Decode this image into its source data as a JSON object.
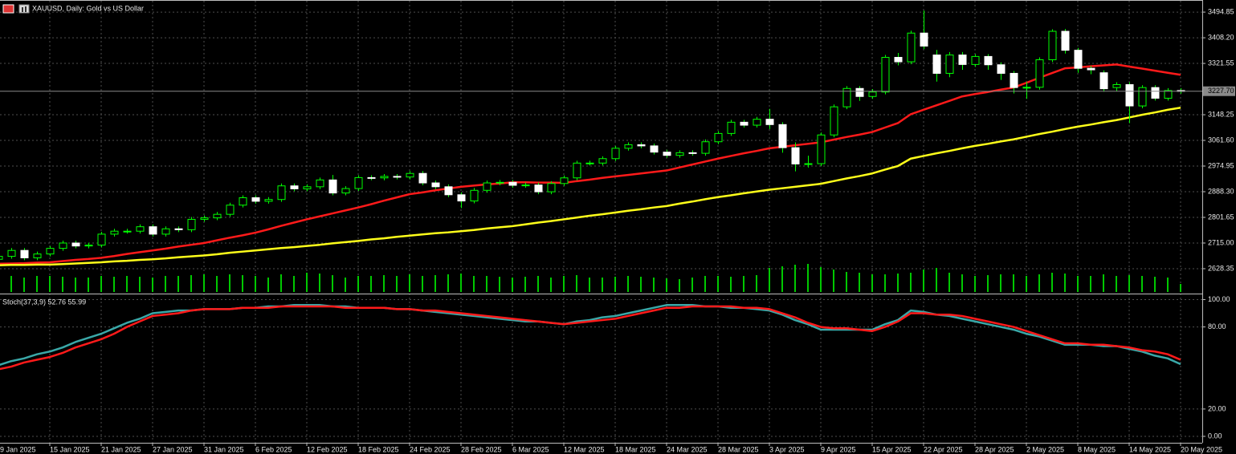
{
  "chart_data": [
    {
      "type": "candlestick",
      "title": "XAUUSD, Daily:  Gold vs US Dollar",
      "categories": [
        "9 Jan 2025",
        null,
        null,
        null,
        "15 Jan 2025",
        null,
        null,
        null,
        "21 Jan 2025",
        null,
        null,
        null,
        "27 Jan 2025",
        null,
        null,
        null,
        "31 Jan 2025",
        null,
        null,
        null,
        "6 Feb 2025",
        null,
        null,
        null,
        "12 Feb 2025",
        null,
        null,
        null,
        "18 Feb 2025",
        null,
        null,
        null,
        "24 Feb 2025",
        null,
        null,
        null,
        "28 Feb 2025",
        null,
        null,
        null,
        "6 Mar 2025",
        null,
        null,
        null,
        "12 Mar 2025",
        null,
        null,
        null,
        "18 Mar 2025",
        null,
        null,
        null,
        "24 Mar 2025",
        null,
        null,
        null,
        "28 Mar 2025",
        null,
        null,
        null,
        "3 Apr 2025",
        null,
        null,
        null,
        "9 Apr 2025",
        null,
        null,
        null,
        "15 Apr 2025",
        null,
        null,
        null,
        "22 Apr 2025",
        null,
        null,
        null,
        "28 Apr 2025",
        null,
        null,
        null,
        "2 May 2025",
        null,
        null,
        null,
        "8 May 2025",
        null,
        null,
        null,
        "14 May 2025",
        null,
        null,
        null,
        "20 May 2025"
      ],
      "open": [
        2660,
        2670,
        2690,
        2665,
        2678,
        2697,
        2715,
        2705,
        2708,
        2745,
        2755,
        2755,
        2770,
        2745,
        2763,
        2760,
        2795,
        2800,
        2812,
        2843,
        2868,
        2856,
        2862,
        2908,
        2898,
        2905,
        2928,
        2884,
        2899,
        2936,
        2935,
        2940,
        2938,
        2950,
        2918,
        2905,
        2878,
        2857,
        2893,
        2918,
        2920,
        2910,
        2911,
        2888,
        2916,
        2935,
        2985,
        2985,
        3000,
        3035,
        3047,
        3043,
        3022,
        3011,
        3020,
        3018,
        3057,
        3085,
        3123,
        3113,
        3133,
        3115,
        3037,
        2982,
        2983,
        3080,
        3175,
        3237,
        3210,
        3225,
        3342,
        3327,
        3424,
        3350,
        3288,
        3350,
        3318,
        3345,
        3317,
        3288,
        3240,
        3241,
        3334,
        3430,
        3366,
        3305,
        3290,
        3240,
        3250,
        3178,
        3240,
        3204,
        3230
      ],
      "high": [
        2678,
        2698,
        2698,
        2686,
        2705,
        2723,
        2723,
        2716,
        2753,
        2763,
        2763,
        2778,
        2778,
        2771,
        2771,
        2803,
        2808,
        2820,
        2851,
        2876,
        2876,
        2870,
        2916,
        2916,
        2913,
        2936,
        2945,
        2907,
        2944,
        2944,
        2948,
        2948,
        2958,
        2958,
        2926,
        2913,
        2886,
        2901,
        2926,
        2928,
        2928,
        2919,
        2919,
        2924,
        2943,
        2993,
        2993,
        3008,
        3043,
        3055,
        3055,
        3051,
        3030,
        3028,
        3028,
        3065,
        3093,
        3131,
        3131,
        3141,
        3168,
        3123,
        3055,
        3010,
        3088,
        3183,
        3245,
        3245,
        3235,
        3350,
        3357,
        3432,
        3500,
        3367,
        3360,
        3360,
        3353,
        3353,
        3325,
        3296,
        3259,
        3342,
        3437,
        3438,
        3374,
        3313,
        3298,
        3258,
        3258,
        3248,
        3248,
        3238,
        3238
      ],
      "low": [
        2652,
        2662,
        2657,
        2657,
        2670,
        2689,
        2697,
        2697,
        2700,
        2737,
        2747,
        2747,
        2737,
        2737,
        2752,
        2752,
        2787,
        2792,
        2804,
        2835,
        2848,
        2848,
        2854,
        2890,
        2890,
        2897,
        2876,
        2876,
        2891,
        2927,
        2927,
        2930,
        2930,
        2910,
        2897,
        2870,
        2833,
        2849,
        2885,
        2910,
        2902,
        2902,
        2880,
        2880,
        2908,
        2927,
        2977,
        2977,
        2992,
        3027,
        3035,
        3014,
        3003,
        3003,
        3010,
        3010,
        3049,
        3077,
        3105,
        3105,
        3100,
        3020,
        2957,
        2970,
        2975,
        3072,
        3167,
        3195,
        3202,
        3217,
        3315,
        3319,
        3370,
        3260,
        3275,
        3300,
        3310,
        3300,
        3266,
        3220,
        3202,
        3233,
        3326,
        3355,
        3290,
        3285,
        3226,
        3228,
        3120,
        3170,
        3196,
        3196,
        3219
      ],
      "close": [
        2670,
        2690,
        2665,
        2678,
        2697,
        2715,
        2705,
        2708,
        2745,
        2755,
        2755,
        2770,
        2745,
        2763,
        2760,
        2795,
        2800,
        2812,
        2843,
        2868,
        2856,
        2862,
        2908,
        2898,
        2905,
        2928,
        2884,
        2899,
        2936,
        2935,
        2940,
        2938,
        2950,
        2918,
        2905,
        2878,
        2857,
        2893,
        2918,
        2920,
        2910,
        2911,
        2888,
        2916,
        2935,
        2985,
        2985,
        3000,
        3035,
        3047,
        3043,
        3022,
        3011,
        3020,
        3018,
        3057,
        3085,
        3123,
        3113,
        3133,
        3115,
        3037,
        2982,
        2983,
        3080,
        3175,
        3237,
        3210,
        3225,
        3342,
        3327,
        3424,
        3380,
        3288,
        3350,
        3318,
        3345,
        3317,
        3288,
        3240,
        3241,
        3334,
        3430,
        3366,
        3305,
        3300,
        3236,
        3250,
        3178,
        3240,
        3204,
        3230,
        3227.7
      ],
      "bull_color": "#00ff00",
      "bear_color": "#ffffff",
      "volume": [
        22,
        20,
        18,
        20,
        20,
        19,
        18,
        18,
        20,
        19,
        20,
        19,
        18,
        20,
        20,
        21,
        22,
        20,
        22,
        21,
        20,
        18,
        22,
        20,
        24,
        23,
        21,
        18,
        20,
        20,
        21,
        20,
        22,
        20,
        21,
        22,
        23,
        20,
        20,
        19,
        18,
        19,
        20,
        18,
        20,
        21,
        18,
        18,
        19,
        20,
        19,
        18,
        17,
        16,
        18,
        20,
        20,
        19,
        20,
        21,
        30,
        32,
        34,
        35,
        31,
        28,
        25,
        24,
        22,
        22,
        23,
        24,
        28,
        30,
        24,
        22,
        20,
        21,
        22,
        22,
        20,
        22,
        24,
        23,
        20,
        20,
        22,
        20,
        21,
        20,
        19,
        18,
        10
      ],
      "volume_color": "#00c800",
      "series": [
        {
          "color": "#ff1a1a",
          "values": [
            2645,
            2646,
            2647,
            2649,
            2650,
            2654,
            2658,
            2661,
            2665,
            2671,
            2678,
            2684,
            2690,
            2696,
            2703,
            2709,
            2715,
            2724,
            2733,
            2741,
            2750,
            2761,
            2773,
            2784,
            2795,
            2805,
            2815,
            2825,
            2835,
            2846,
            2858,
            2869,
            2880,
            2886,
            2893,
            2899,
            2905,
            2909,
            2913,
            2916,
            2920,
            2920,
            2919,
            2919,
            2918,
            2924,
            2929,
            2935,
            2940,
            2945,
            2950,
            2955,
            2960,
            2970,
            2980,
            2990,
            3000,
            3009,
            3018,
            3026,
            3035,
            3040,
            3045,
            3050,
            3055,
            3064,
            3073,
            3081,
            3090,
            3105,
            3120,
            3150,
            3165,
            3180,
            3195,
            3210,
            3218,
            3225,
            3233,
            3240,
            3256,
            3273,
            3289,
            3305,
            3308,
            3312,
            3315,
            3318,
            3311,
            3304,
            3297,
            3290,
            3283
          ]
        },
        {
          "color": "#ffff1a",
          "values": [
            2640,
            2641,
            2641,
            2642,
            2642,
            2644,
            2646,
            2648,
            2650,
            2653,
            2655,
            2658,
            2660,
            2663,
            2667,
            2670,
            2673,
            2677,
            2682,
            2686,
            2690,
            2694,
            2698,
            2701,
            2705,
            2709,
            2714,
            2718,
            2722,
            2727,
            2731,
            2736,
            2740,
            2744,
            2748,
            2751,
            2755,
            2759,
            2764,
            2768,
            2772,
            2778,
            2784,
            2789,
            2795,
            2801,
            2807,
            2812,
            2818,
            2824,
            2829,
            2835,
            2840,
            2848,
            2855,
            2863,
            2870,
            2876,
            2883,
            2889,
            2895,
            2900,
            2905,
            2910,
            2915,
            2924,
            2933,
            2941,
            2950,
            2963,
            2975,
            3000,
            3009,
            3018,
            3026,
            3035,
            3043,
            3050,
            3058,
            3065,
            3074,
            3083,
            3091,
            3100,
            3108,
            3115,
            3123,
            3130,
            3139,
            3148,
            3156,
            3165,
            3172
          ]
        }
      ],
      "current_price": {
        "value": 3227.7,
        "label": "3227.70"
      },
      "ylim": [
        2547,
        3533
      ],
      "yticks": [
        2628.35,
        {
          "value": 2715,
          "label": "2715.00"
        },
        2801.65,
        {
          "value": 2888.3,
          "label": "2888.30"
        },
        2974.95,
        {
          "value": 3061.6,
          "label": "3061.60"
        },
        3148.25,
        3321.55,
        {
          "value": 3408.2,
          "label": "3408.20"
        },
        3494.85
      ],
      "grid": true
    },
    {
      "type": "line",
      "title": "Stoch(37,3,9) 52.76 55.99",
      "series": [
        {
          "color": "#3aa8a8",
          "values": [
            52,
            55,
            57,
            60,
            62,
            65,
            69,
            72,
            75,
            79,
            83,
            86,
            90,
            91,
            92,
            92,
            93,
            93,
            93,
            94,
            94,
            95,
            95,
            96,
            96,
            96,
            95,
            95,
            94,
            94,
            94,
            93,
            93,
            92,
            91,
            90,
            89,
            88,
            87,
            86,
            85,
            84,
            84,
            83,
            82,
            84,
            85,
            87,
            88,
            90,
            92,
            94,
            96,
            96,
            96,
            95,
            95,
            94,
            94,
            93,
            92,
            89,
            85,
            82,
            78,
            78,
            78,
            78,
            78,
            82,
            85,
            92,
            91,
            89,
            88,
            86,
            84,
            82,
            80,
            78,
            75,
            73,
            70,
            67,
            67,
            67,
            66,
            66,
            64,
            62,
            59,
            57,
            52.76
          ]
        },
        {
          "color": "#ff1a1a",
          "values": [
            49,
            51,
            54,
            56,
            58,
            61,
            65,
            68,
            71,
            75,
            80,
            84,
            88,
            89,
            90,
            92,
            93,
            93,
            93,
            94,
            94,
            94,
            95,
            95,
            95,
            95,
            95,
            94,
            94,
            94,
            94,
            93,
            93,
            92,
            92,
            91,
            90,
            89,
            88,
            87,
            86,
            85,
            84,
            83,
            82,
            83,
            84,
            85,
            86,
            88,
            90,
            92,
            94,
            94,
            95,
            95,
            95,
            95,
            94,
            94,
            93,
            90,
            87,
            83,
            80,
            79,
            79,
            78,
            77,
            80,
            84,
            90,
            90,
            89,
            89,
            88,
            86,
            84,
            82,
            80,
            77,
            74,
            71,
            68,
            68,
            67,
            67,
            66,
            65,
            63,
            62,
            60,
            55.99
          ]
        }
      ],
      "ylim": [
        -4.1,
        103.8
      ],
      "yticks": [
        {
          "value": 100,
          "label": "100.00"
        },
        {
          "value": 80,
          "label": "80.00"
        },
        {
          "value": 20,
          "label": "20.00"
        },
        {
          "value": 0,
          "label": "0.00"
        }
      ],
      "grid": true
    }
  ]
}
